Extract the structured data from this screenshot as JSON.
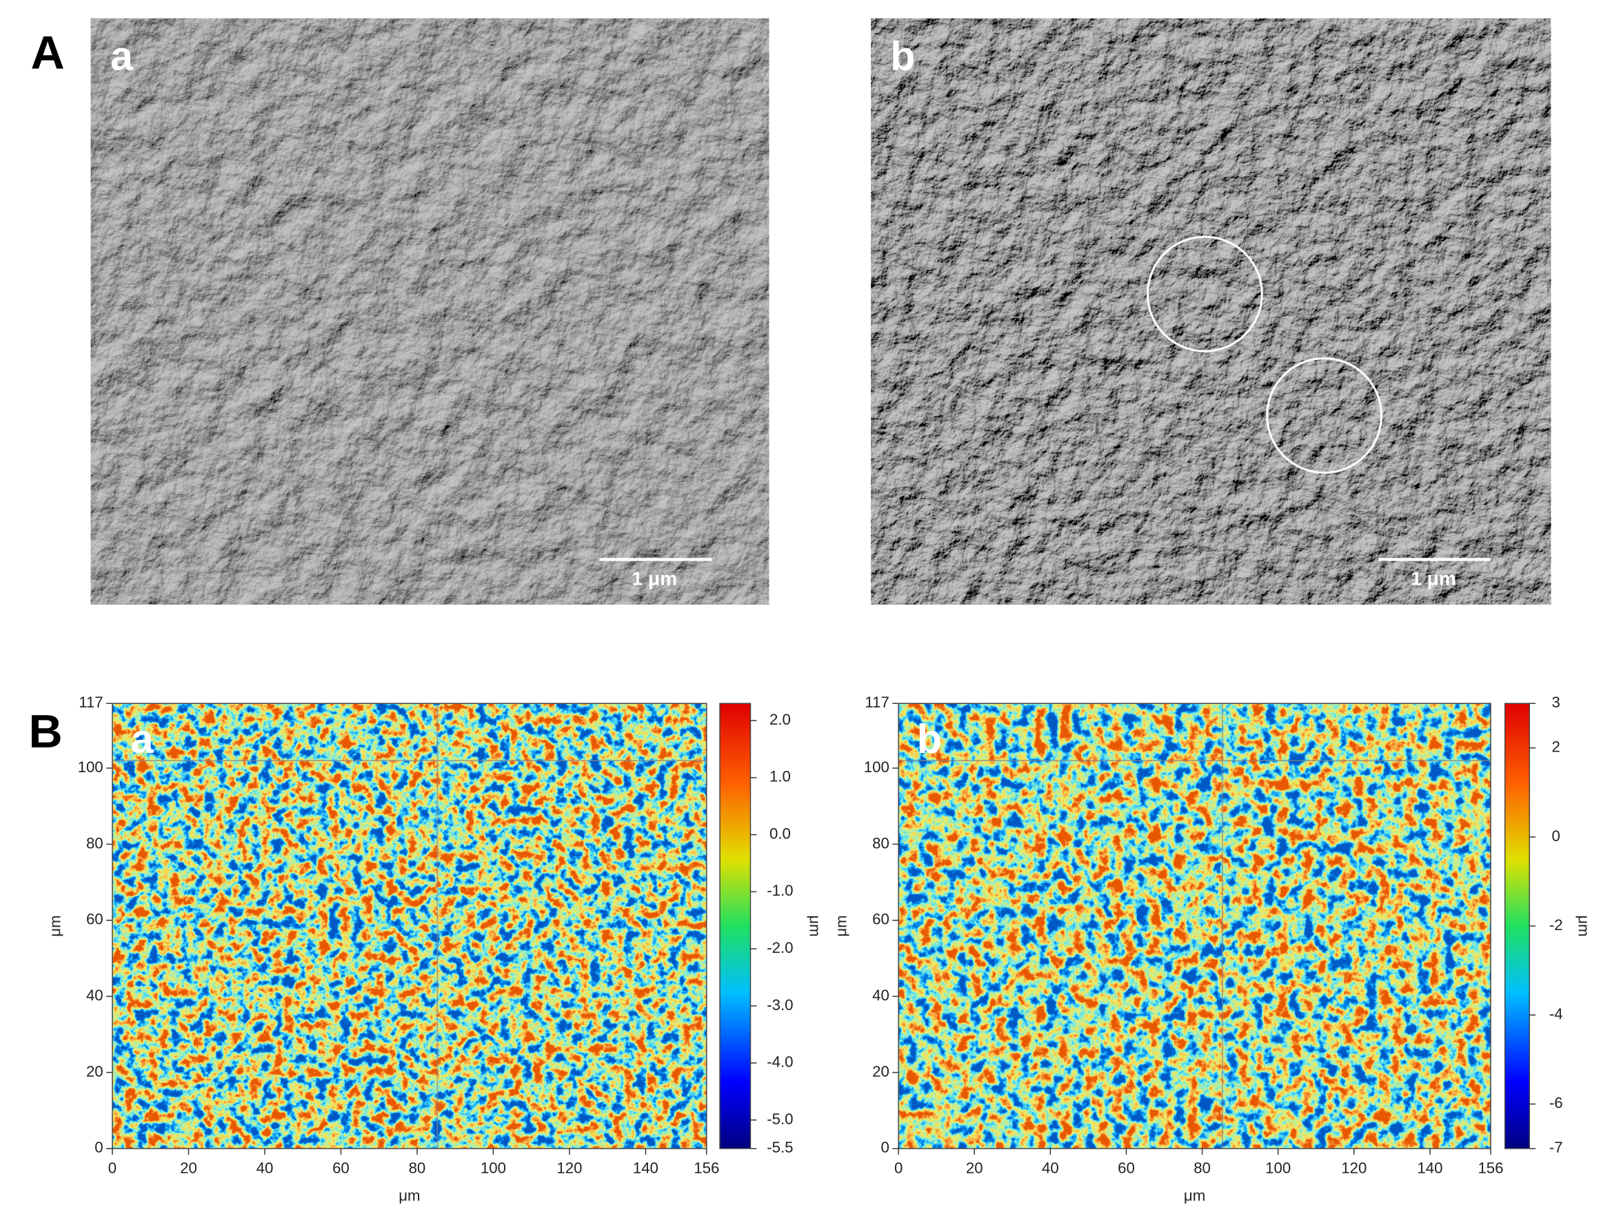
{
  "figure": {
    "panel_A": {
      "label": "A",
      "images": [
        {
          "label": "a",
          "scale_bar": "1 μm"
        },
        {
          "label": "b",
          "scale_bar": "1 μm"
        }
      ]
    },
    "panel_B": {
      "label": "B",
      "maps": [
        {
          "label": "a",
          "x_label": "μm",
          "y_label": "μm",
          "xlim": [
            0,
            156
          ],
          "ylim": [
            0,
            117
          ],
          "xticks": [
            0,
            20,
            40,
            60,
            80,
            100,
            120,
            140,
            156
          ],
          "yticks": [
            0,
            20,
            40,
            60,
            80,
            100,
            117
          ],
          "colorbar": {
            "label": "μm",
            "lim": [
              -5.5,
              2.3
            ],
            "ticks": [
              {
                "value": 2,
                "label": "2.0"
              },
              {
                "value": 1,
                "label": "1.0"
              },
              {
                "value": 0,
                "label": "0.0"
              },
              {
                "value": -1,
                "label": "-1.0"
              },
              {
                "value": -2,
                "label": "-2.0"
              },
              {
                "value": -3,
                "label": "-3.0"
              },
              {
                "value": -4,
                "label": "-4.0"
              },
              {
                "value": -5,
                "label": "-5.0"
              },
              -5.5
            ]
          }
        },
        {
          "label": "b",
          "x_label": "μm",
          "y_label": "μm",
          "xlim": [
            0,
            156
          ],
          "ylim": [
            0,
            117
          ],
          "xticks": [
            0,
            20,
            40,
            60,
            80,
            100,
            120,
            140,
            156
          ],
          "yticks": [
            0,
            20,
            40,
            60,
            80,
            100,
            117
          ],
          "colorbar": {
            "label": "μm",
            "lim": [
              -7,
              3
            ],
            "ticks": [
              3,
              2,
              0,
              -2,
              -4,
              -6,
              -7
            ]
          }
        }
      ]
    }
  }
}
